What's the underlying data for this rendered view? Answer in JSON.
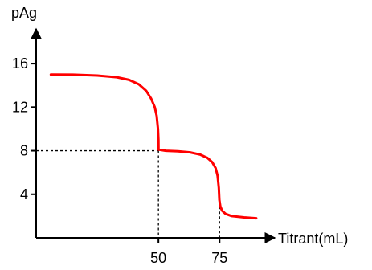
{
  "chart_data": {
    "type": "line",
    "ylabel": "pAg",
    "xlabel": "Titrant(mL)",
    "xlim": [
      0,
      92
    ],
    "ylim": [
      0,
      18
    ],
    "yticks": [
      {
        "value": 4,
        "label": "4"
      },
      {
        "value": 8,
        "label": "8"
      },
      {
        "value": 12,
        "label": "12"
      },
      {
        "value": 16,
        "label": "16"
      }
    ],
    "xticks": [
      {
        "value": 50,
        "label": "50"
      },
      {
        "value": 75,
        "label": "75"
      }
    ],
    "reference_lines": [
      {
        "x": 50,
        "y": 8
      },
      {
        "x": 75,
        "y": 3.3
      }
    ],
    "series": [
      {
        "color": "#ff0000",
        "points": [
          [
            6,
            15.0
          ],
          [
            15,
            14.98
          ],
          [
            25,
            14.9
          ],
          [
            33,
            14.75
          ],
          [
            38,
            14.5
          ],
          [
            42,
            14.1
          ],
          [
            45,
            13.5
          ],
          [
            47,
            12.8
          ],
          [
            48.5,
            12.0
          ],
          [
            49.3,
            11.2
          ],
          [
            49.8,
            10.0
          ],
          [
            50,
            9.0
          ],
          [
            50.05,
            8.1
          ],
          [
            53,
            8.0
          ],
          [
            58,
            7.95
          ],
          [
            63,
            7.85
          ],
          [
            67,
            7.65
          ],
          [
            70,
            7.35
          ],
          [
            72,
            6.95
          ],
          [
            73.4,
            6.4
          ],
          [
            74.2,
            5.7
          ],
          [
            74.7,
            4.6
          ],
          [
            74.9,
            3.5
          ],
          [
            75.3,
            2.9
          ],
          [
            76,
            2.5
          ],
          [
            77.5,
            2.2
          ],
          [
            80,
            2.0
          ],
          [
            85,
            1.88
          ],
          [
            90,
            1.8
          ]
        ]
      }
    ],
    "grid": false,
    "legend": "none"
  }
}
